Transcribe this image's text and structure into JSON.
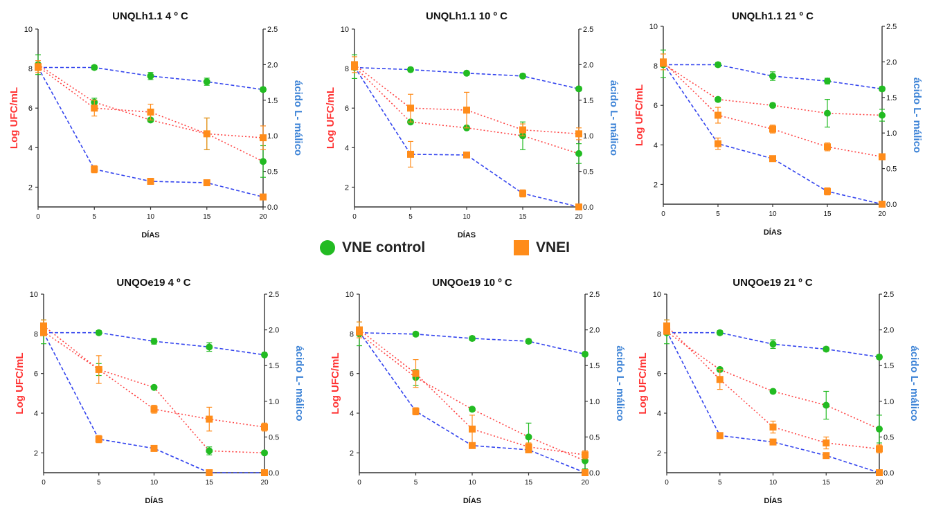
{
  "colors": {
    "vne": "#22bb22",
    "vnei": "#ff8c1a",
    "log_line": "#ff4444",
    "malic_line": "#3344ee",
    "left_label": "#ff3333",
    "right_label": "#3b82d6",
    "axis": "#333333"
  },
  "legend": {
    "vne_label": "VNE control",
    "vnei_label": "VNEI",
    "vne_icon": "green-circle",
    "vnei_icon": "orange-square"
  },
  "chart_data": [
    {
      "type": "line",
      "title": "UNQLh1.1 4 º C",
      "xlabel": "DÍAS",
      "ylabel": "Log UFC/mL",
      "y2label": "ácido L- málico",
      "x": [
        0,
        5,
        10,
        15,
        20
      ],
      "xticks": [
        "0",
        "5",
        "10",
        "15",
        "20"
      ],
      "ylim": [
        1,
        10
      ],
      "y2lim": [
        0,
        2.5
      ],
      "yticks": [
        "2",
        "4",
        "6",
        "8",
        "10"
      ],
      "y2ticks": [
        "0.0",
        "0.5",
        "1.0",
        "1.5",
        "2.0",
        "2.5"
      ],
      "series": [
        {
          "name": "VNE control",
          "axis": "left",
          "marker": "circle",
          "values": [
            8.2,
            6.3,
            5.4,
            4.7,
            3.3
          ],
          "err": [
            0.5,
            0.2,
            0.1,
            0.8,
            0.8
          ]
        },
        {
          "name": "VNEI",
          "axis": "left",
          "marker": "square",
          "values": [
            8.1,
            6.0,
            5.8,
            4.7,
            4.5
          ],
          "err": [
            0.3,
            0.4,
            0.4,
            0.8,
            0.6
          ]
        },
        {
          "name": "VNE control",
          "axis": "right",
          "marker": "circle",
          "values": [
            1.96,
            1.96,
            1.84,
            1.76,
            1.65
          ],
          "err": [
            0.04,
            0.03,
            0.05,
            0.05,
            0.03
          ]
        },
        {
          "name": "VNEI",
          "axis": "right",
          "marker": "square",
          "values": [
            1.96,
            0.53,
            0.36,
            0.34,
            0.14
          ],
          "err": [
            0.03,
            0.05,
            0.03,
            0.03,
            0.03
          ]
        }
      ]
    },
    {
      "type": "line",
      "title": "UNQLh1.1 10 º C",
      "xlabel": "DÍAS",
      "ylabel": "Log UFC/mL",
      "y2label": "ácido L- málico",
      "x": [
        0,
        5,
        10,
        15,
        20
      ],
      "xticks": [
        "0",
        "5",
        "10",
        "15",
        "20"
      ],
      "ylim": [
        1,
        10
      ],
      "y2lim": [
        0,
        2.5
      ],
      "yticks": [
        "2",
        "4",
        "6",
        "8",
        "10"
      ],
      "y2ticks": [
        "0.0",
        "0.5",
        "1.0",
        "1.5",
        "2.0",
        "2.5"
      ],
      "series": [
        {
          "name": "VNE control",
          "axis": "left",
          "marker": "circle",
          "values": [
            8.1,
            5.3,
            5.0,
            4.6,
            3.7
          ],
          "err": [
            0.6,
            0.1,
            0.1,
            0.7,
            0.5
          ]
        },
        {
          "name": "VNEI",
          "axis": "left",
          "marker": "square",
          "values": [
            8.2,
            6.0,
            5.9,
            4.9,
            4.7
          ],
          "err": [
            0.4,
            0.7,
            0.9,
            0.3,
            0.3
          ]
        },
        {
          "name": "VNE control",
          "axis": "right",
          "marker": "circle",
          "values": [
            1.96,
            1.93,
            1.88,
            1.84,
            1.66
          ],
          "err": [
            0.03,
            0.03,
            0.03,
            0.03,
            0.03
          ]
        },
        {
          "name": "VNEI",
          "axis": "right",
          "marker": "square",
          "values": [
            1.97,
            0.74,
            0.73,
            0.19,
            0.0
          ],
          "err": [
            0.03,
            0.18,
            0.03,
            0.05,
            0.02
          ]
        }
      ]
    },
    {
      "type": "line",
      "title": "UNQLh1.1 21 º C",
      "xlabel": "DÍAS",
      "ylabel": "Log UFC/mL",
      "y2label": "ácido L- málico",
      "x": [
        0,
        5,
        10,
        15,
        20
      ],
      "xticks": [
        "0",
        "5",
        "10",
        "15",
        "20"
      ],
      "ylim": [
        1,
        10
      ],
      "y2lim": [
        0,
        2.5
      ],
      "yticks": [
        "2",
        "4",
        "6",
        "8",
        "10"
      ],
      "y2ticks": [
        "0.0",
        "0.5",
        "1.0",
        "1.5",
        "2.0",
        "2.5"
      ],
      "series": [
        {
          "name": "VNE control",
          "axis": "left",
          "marker": "circle",
          "values": [
            8.1,
            6.3,
            6.0,
            5.6,
            5.5
          ],
          "err": [
            0.7,
            0.1,
            0.1,
            0.7,
            0.3
          ]
        },
        {
          "name": "VNEI",
          "axis": "left",
          "marker": "square",
          "values": [
            8.2,
            5.5,
            4.8,
            3.9,
            3.4
          ],
          "err": [
            0.4,
            0.4,
            0.2,
            0.2,
            0.1
          ]
        },
        {
          "name": "VNE control",
          "axis": "right",
          "marker": "circle",
          "values": [
            1.96,
            1.96,
            1.8,
            1.73,
            1.62
          ],
          "err": [
            0.03,
            0.03,
            0.06,
            0.04,
            0.03
          ]
        },
        {
          "name": "VNEI",
          "axis": "right",
          "marker": "square",
          "values": [
            1.98,
            0.85,
            0.64,
            0.18,
            0.0
          ],
          "err": [
            0.03,
            0.08,
            0.03,
            0.05,
            0.02
          ]
        }
      ]
    },
    {
      "type": "line",
      "title": "UNQOe19 4 º C",
      "xlabel": "DÍAS",
      "ylabel": "Log UFC/mL",
      "y2label": "ácido L- málico",
      "x": [
        0,
        5,
        10,
        15,
        20
      ],
      "xticks": [
        "0",
        "5",
        "10",
        "15",
        "20"
      ],
      "ylim": [
        1,
        10
      ],
      "y2lim": [
        0,
        2.5
      ],
      "yticks": [
        "2",
        "4",
        "6",
        "8",
        "10"
      ],
      "y2ticks": [
        "0.0",
        "0.5",
        "1.0",
        "1.5",
        "2.0",
        "2.5"
      ],
      "series": [
        {
          "name": "VNE control",
          "axis": "left",
          "marker": "circle",
          "values": [
            8.1,
            6.2,
            5.3,
            2.1,
            2.0
          ],
          "err": [
            0.6,
            0.3,
            0.1,
            0.2,
            0.1
          ]
        },
        {
          "name": "VNEI",
          "axis": "left",
          "marker": "square",
          "values": [
            8.4,
            6.2,
            4.2,
            3.7,
            3.3
          ],
          "err": [
            0.3,
            0.7,
            0.2,
            0.6,
            0.2
          ]
        },
        {
          "name": "VNE control",
          "axis": "right",
          "marker": "circle",
          "values": [
            1.96,
            1.96,
            1.84,
            1.76,
            1.65
          ],
          "err": [
            0.04,
            0.03,
            0.04,
            0.06,
            0.03
          ]
        },
        {
          "name": "VNEI",
          "axis": "right",
          "marker": "square",
          "values": [
            1.96,
            0.47,
            0.34,
            0.0,
            0.0
          ],
          "err": [
            0.03,
            0.05,
            0.03,
            0.02,
            0.02
          ]
        }
      ]
    },
    {
      "type": "line",
      "title": "UNQOe19 10 º C",
      "xlabel": "DÍAS",
      "ylabel": "Log UFC/mL",
      "y2label": "ácido L- málico",
      "x": [
        0,
        5,
        10,
        15,
        20
      ],
      "xticks": [
        "0",
        "5",
        "10",
        "15",
        "20"
      ],
      "ylim": [
        1,
        10
      ],
      "y2lim": [
        0,
        2.5
      ],
      "yticks": [
        "2",
        "4",
        "6",
        "8",
        "10"
      ],
      "y2ticks": [
        "0.0",
        "0.5",
        "1.0",
        "1.5",
        "2.0",
        "2.5"
      ],
      "series": [
        {
          "name": "VNE control",
          "axis": "left",
          "marker": "circle",
          "values": [
            8.0,
            5.8,
            4.2,
            2.8,
            1.6
          ],
          "err": [
            0.6,
            0.4,
            0.1,
            0.7,
            0.4
          ]
        },
        {
          "name": "VNEI",
          "axis": "left",
          "marker": "square",
          "values": [
            8.2,
            6.0,
            3.2,
            2.3,
            1.9
          ],
          "err": [
            0.4,
            0.7,
            0.7,
            0.2,
            0.2
          ]
        },
        {
          "name": "VNE control",
          "axis": "right",
          "marker": "circle",
          "values": [
            1.96,
            1.94,
            1.88,
            1.84,
            1.66
          ],
          "err": [
            0.03,
            0.03,
            0.03,
            0.03,
            0.03
          ]
        },
        {
          "name": "VNEI",
          "axis": "right",
          "marker": "square",
          "values": [
            1.97,
            0.86,
            0.38,
            0.32,
            0.0
          ],
          "err": [
            0.03,
            0.05,
            0.04,
            0.04,
            0.02
          ]
        }
      ]
    },
    {
      "type": "line",
      "title": "UNQOe19 21 º C",
      "xlabel": "DÍAS",
      "ylabel": "Log UFC/mL",
      "y2label": "ácido L- málico",
      "x": [
        0,
        5,
        10,
        15,
        20
      ],
      "xticks": [
        "0",
        "5",
        "10",
        "15",
        "20"
      ],
      "ylim": [
        1,
        10
      ],
      "y2lim": [
        0,
        2.5
      ],
      "yticks": [
        "2",
        "4",
        "6",
        "8",
        "10"
      ],
      "y2ticks": [
        "0.0",
        "0.5",
        "1.0",
        "1.5",
        "2.0",
        "2.5"
      ],
      "series": [
        {
          "name": "VNE control",
          "axis": "left",
          "marker": "circle",
          "values": [
            8.1,
            6.2,
            5.1,
            4.4,
            3.2
          ],
          "err": [
            0.6,
            0.1,
            0.1,
            0.7,
            0.7
          ]
        },
        {
          "name": "VNEI",
          "axis": "left",
          "marker": "square",
          "values": [
            8.4,
            5.7,
            3.3,
            2.5,
            2.2
          ],
          "err": [
            0.3,
            0.5,
            0.3,
            0.3,
            0.2
          ]
        },
        {
          "name": "VNE control",
          "axis": "right",
          "marker": "circle",
          "values": [
            1.96,
            1.96,
            1.8,
            1.73,
            1.62
          ],
          "err": [
            0.03,
            0.03,
            0.06,
            0.03,
            0.03
          ]
        },
        {
          "name": "VNEI",
          "axis": "right",
          "marker": "square",
          "values": [
            1.98,
            0.52,
            0.43,
            0.24,
            0.0
          ],
          "err": [
            0.03,
            0.04,
            0.04,
            0.04,
            0.02
          ]
        }
      ]
    }
  ]
}
